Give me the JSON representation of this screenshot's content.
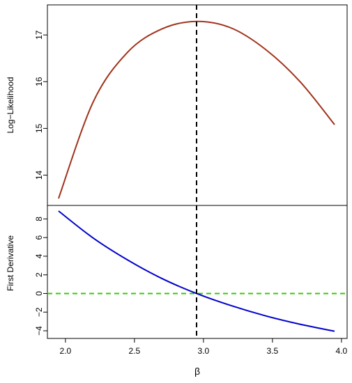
{
  "chart_data": [
    {
      "type": "line",
      "title": "",
      "xlabel": "",
      "ylabel": "Log−Likelihood",
      "xlim": [
        1.95,
        3.95
      ],
      "ylim": [
        13.5,
        17.45
      ],
      "yticks": [
        14,
        15,
        16,
        17
      ],
      "vline": {
        "x": 2.95,
        "style": "dashed",
        "color": "#000000"
      },
      "series": [
        {
          "color": "#a0321a",
          "x": [
            1.95,
            2.2,
            2.45,
            2.7,
            2.95,
            3.2,
            3.45,
            3.7,
            3.95
          ],
          "y": [
            13.5,
            15.56,
            16.63,
            17.13,
            17.29,
            17.15,
            16.69,
            16.0,
            15.08
          ]
        }
      ]
    },
    {
      "type": "line",
      "title": "",
      "xlabel": "β",
      "ylabel": "First Derivative",
      "xlim": [
        1.95,
        3.95
      ],
      "ylim": [
        -4,
        9
      ],
      "xticks": [
        2.0,
        2.5,
        3.0,
        3.5,
        4.0
      ],
      "xtick_labels": [
        "2.0",
        "2.5",
        "3.0",
        "3.5",
        "4.0"
      ],
      "yticks": [
        -4,
        -2,
        0,
        2,
        4,
        6,
        8
      ],
      "yticks_text": [
        "−4",
        "−2",
        "0",
        "2",
        "4",
        "6",
        "8"
      ],
      "vline": {
        "x": 2.95,
        "style": "dashed",
        "color": "#000000"
      },
      "hline": {
        "y": 0,
        "style": "dashed",
        "color": "#33cc00"
      },
      "series": [
        {
          "color": "#0000cc",
          "x": [
            1.95,
            2.2,
            2.45,
            2.7,
            2.95,
            3.2,
            3.45,
            3.7,
            3.95
          ],
          "y": [
            8.85,
            5.96,
            3.6,
            1.6,
            0.0,
            -1.3,
            -2.4,
            -3.3,
            -4.05
          ]
        }
      ]
    }
  ]
}
